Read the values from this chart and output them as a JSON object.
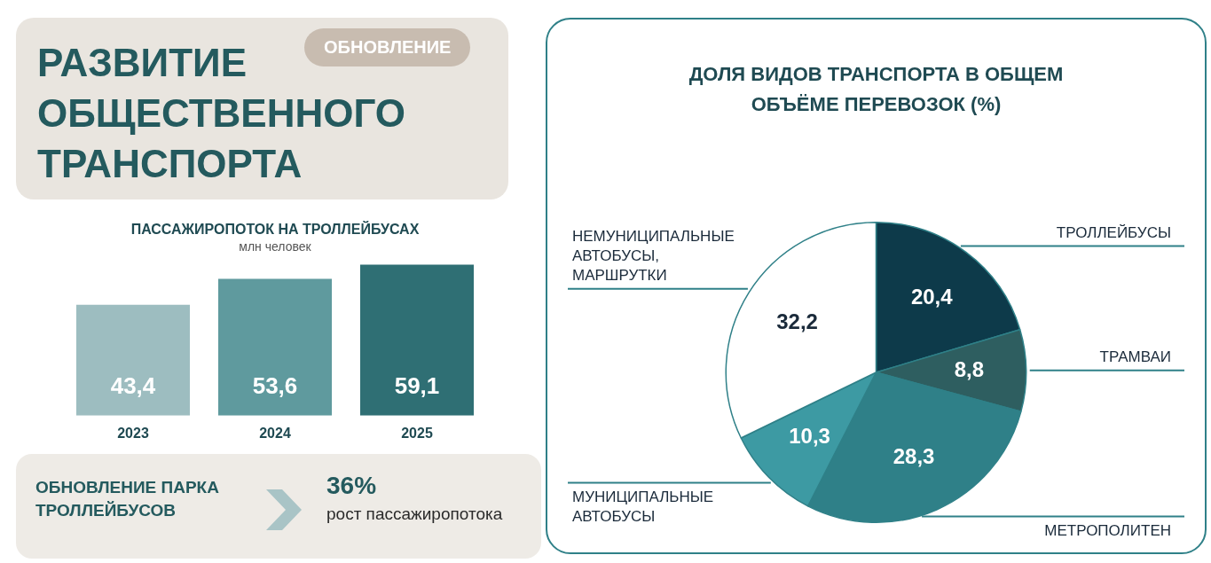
{
  "chart_data": [
    {
      "type": "other",
      "title": "РАЗВИТИЕ ОБЩЕСТВЕННОГО ТРАНСПОРТА",
      "annotations": [
        "ОБНОВЛЕНИЕ"
      ]
    },
    {
      "type": "bar",
      "title": "ПАССАЖИРОПОТОК НА ТРОЛЛЕЙБУСАХ",
      "subtitle": "млн человек",
      "categories": [
        "2023",
        "2024",
        "2025"
      ],
      "values": [
        43.4,
        53.6,
        59.1
      ],
      "colors": [
        "#9dbdc0",
        "#5f9a9e",
        "#2f6f74"
      ],
      "value_labels": [
        "43,4",
        "53,6",
        "59,1"
      ]
    },
    {
      "type": "other",
      "title": "ОБНОВЛЕНИЕ ПАРКА ТРОЛЛЕЙБУСОВ",
      "annotations": [
        "36%",
        "рост пассажиропотока"
      ]
    },
    {
      "type": "pie",
      "title": "ДОЛЯ ВИДОВ ТРАНСПОРТА В ОБЩЕМ ОБЪЁМЕ ПЕРЕВОЗОК (%)",
      "categories": [
        "ТРОЛЛЕЙБУСЫ",
        "ТРАМВАИ",
        "МЕТРОПОЛИТЕН",
        "МУНИЦИПАЛЬНЫЕ АВТОБУСЫ",
        "НЕМУНИЦИПАЛЬНЫЕ АВТОБУСЫ, МАРШРУТКИ"
      ],
      "values": [
        20.4,
        8.8,
        28.3,
        10.3,
        32.2
      ],
      "colors": [
        "#0d3a4a",
        "#2e5e60",
        "#2f8088",
        "#3d9aa3",
        "#ffffff"
      ],
      "value_labels": [
        "20,4",
        "8,8",
        "28,3",
        "10,3",
        "32,2"
      ]
    }
  ]
}
